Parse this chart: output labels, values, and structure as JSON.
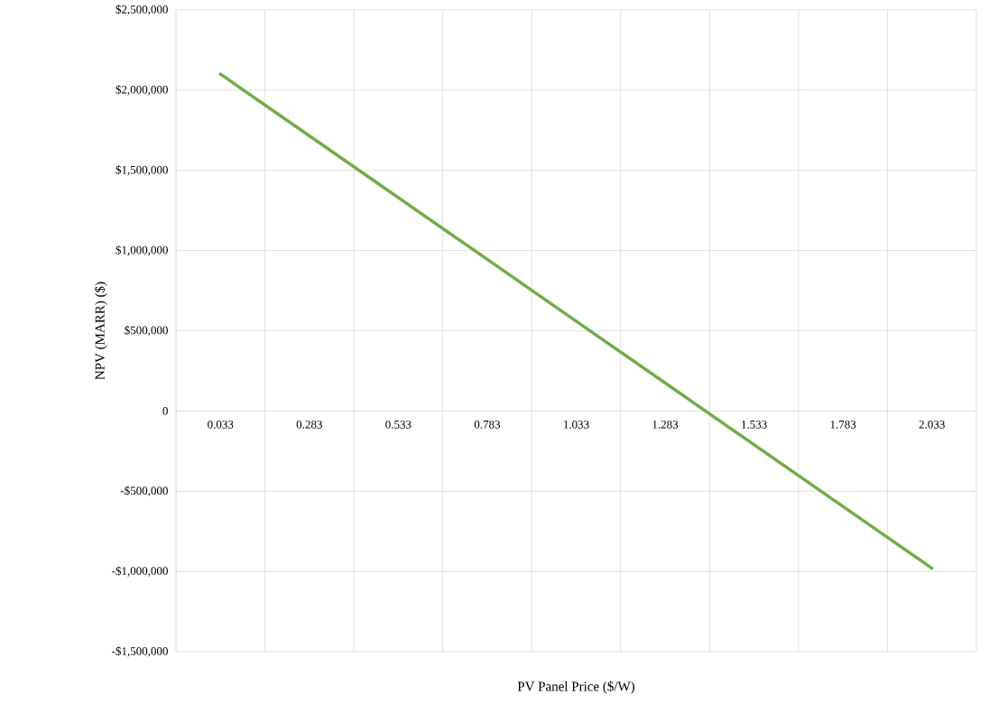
{
  "chart_data": {
    "type": "line",
    "xlabel": "PV Panel Price ($/W)",
    "ylabel": "NPV (MARR) ($)",
    "categories": [
      "0.033",
      "0.283",
      "0.533",
      "0.783",
      "1.033",
      "1.283",
      "1.533",
      "1.783",
      "2.033"
    ],
    "series": [
      {
        "color": "#70ad47",
        "values": [
          2100000,
          1715000,
          1330000,
          945000,
          560000,
          175000,
          -210000,
          -595000,
          -980000
        ]
      }
    ],
    "ylim": [
      -1500000,
      2500000
    ],
    "yticks": [
      {
        "value": -1500000,
        "label": "-$1,500,000"
      },
      {
        "value": -1000000,
        "label": "-$1,000,000"
      },
      {
        "value": -500000,
        "label": "-$500,000"
      },
      0,
      {
        "value": 500000,
        "label": "$500,000"
      },
      {
        "value": 1000000,
        "label": "$1,000,000"
      },
      {
        "value": 1500000,
        "label": "$1,500,000"
      },
      {
        "value": 2000000,
        "label": "$2,000,000"
      },
      {
        "value": 2500000,
        "label": "$2,500,000"
      }
    ],
    "grid": true,
    "marker": "none",
    "line_style": "solid"
  }
}
